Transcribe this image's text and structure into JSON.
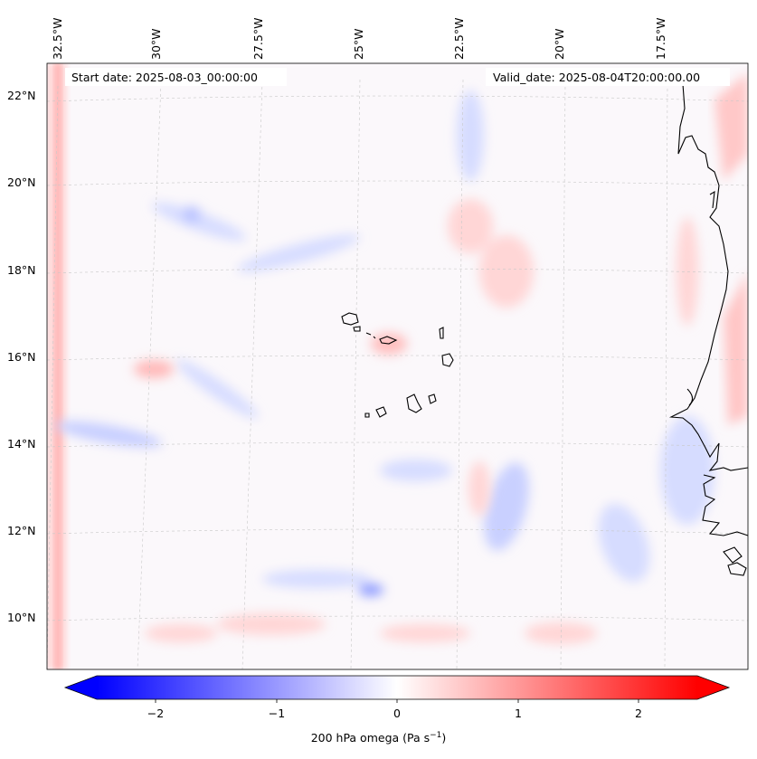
{
  "header": {
    "start_date": "Start date: 2025-08-03_00:00:00",
    "valid_date": "Valid_date: 2025-08-04T20:00:00.00"
  },
  "lon_labels": [
    "32.5°W",
    "30°W",
    "27.5°W",
    "25°W",
    "22.5°W",
    "20°W",
    "17.5°W"
  ],
  "lat_labels": [
    "22°N",
    "20°N",
    "18°N",
    "16°N",
    "14°N",
    "12°N",
    "10°N"
  ],
  "colorbar": {
    "title": "200 hPa omega (Pa s",
    "title_sup": "−1",
    "title_end": ")",
    "ticks": [
      "−2",
      "−1",
      "0",
      "1",
      "2"
    ],
    "range": [
      -2.5,
      2.5
    ],
    "colormap": "bwr",
    "negative_color": "#0000ff",
    "zero_color": "#ffffff",
    "positive_color": "#ff0000"
  },
  "map": {
    "lon_range": [
      "33°W",
      "16°W"
    ],
    "lat_range": [
      "9°N",
      "22.8°N"
    ],
    "coastline_color": "#000000",
    "grid": "dashed"
  }
}
